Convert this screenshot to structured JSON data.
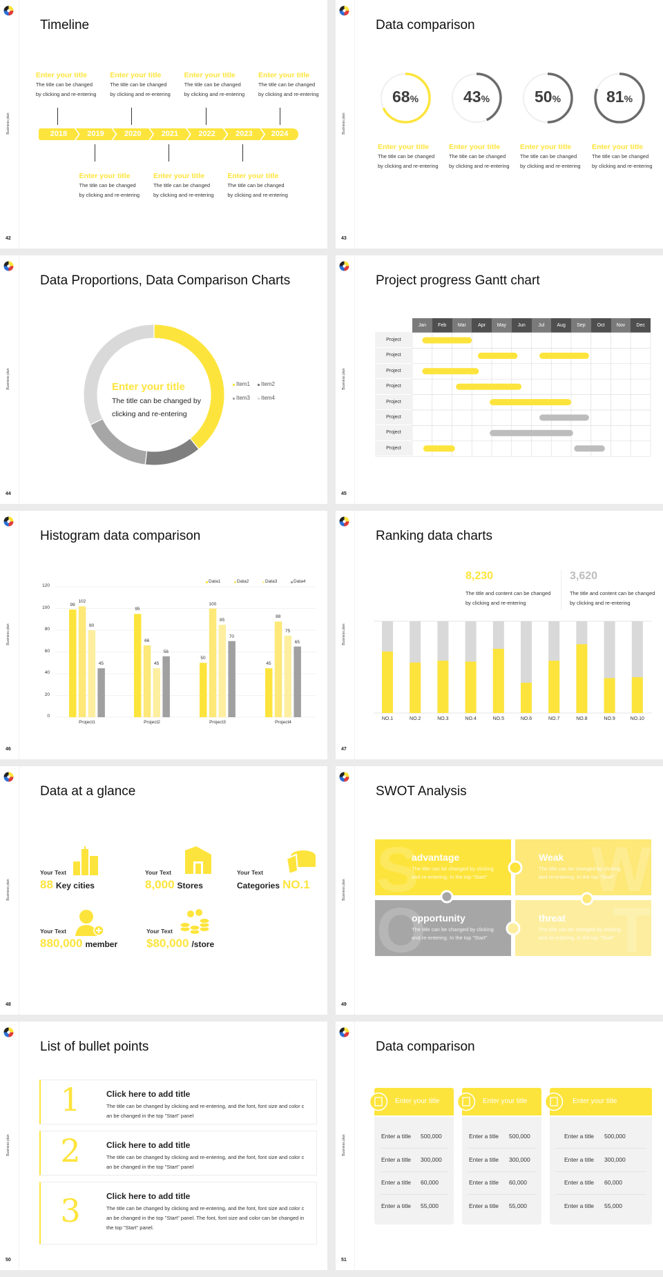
{
  "theme": {
    "yellow": "#fde43c",
    "yellow_mid": "#fde878",
    "yellow_light": "#fdef9f",
    "gray": "#a6a6a6",
    "dark_gray": "#6b6b6b"
  },
  "sidebar_label": "Business plan",
  "slides": [
    {
      "page": "42",
      "title": "Timeline",
      "timeline": {
        "years": [
          "2018",
          "2019",
          "2020",
          "2021",
          "2022",
          "2023",
          "2024"
        ],
        "items": [
          {
            "title": "Enter your title",
            "line1": "The title can be changed",
            "line2": "by clicking and re-entering"
          },
          {
            "title": "Enter your title",
            "line1": "The title can be changed",
            "line2": "by clicking and re-entering"
          },
          {
            "title": "Enter your title",
            "line1": "The title can be changed",
            "line2": "by clicking and re-entering"
          },
          {
            "title": "Enter your title",
            "line1": "The title can be changed",
            "line2": "by clicking and re-entering"
          },
          {
            "title": "Enter your title",
            "line1": "The title can be changed",
            "line2": "by clicking and re-entering"
          },
          {
            "title": "Enter your title",
            "line1": "The title can be changed",
            "line2": "by clicking and re-entering"
          },
          {
            "title": "Enter your title",
            "line1": "The title can be changed",
            "line2": "by clicking and re-entering"
          }
        ]
      }
    },
    {
      "page": "43",
      "title": "Data comparison",
      "gauges": [
        {
          "value": 68,
          "label": "68",
          "unit": "%",
          "color": "#fde43c",
          "title": "Enter your title",
          "line1": "The title can be changed",
          "line2": "by clicking and re-entering"
        },
        {
          "value": 43,
          "label": "43",
          "unit": "%",
          "color": "#6b6b6b",
          "title": "Enter your title",
          "line1": "The title can be changed",
          "line2": "by clicking and re-entering"
        },
        {
          "value": 50,
          "label": "50",
          "unit": "%",
          "color": "#6b6b6b",
          "title": "Enter your title",
          "line1": "The title can be changed",
          "line2": "by clicking and re-entering"
        },
        {
          "value": 81,
          "label": "81",
          "unit": "%",
          "color": "#6b6b6b",
          "title": "Enter your title",
          "line1": "The title can be changed",
          "line2": "by clicking and re-entering"
        }
      ]
    },
    {
      "page": "44",
      "title": "Data Proportions, Data Comparison Charts",
      "center": {
        "title": "Enter your title",
        "line1": "The title can be changed by",
        "line2": "clicking and re-entering"
      }
    },
    {
      "page": "45",
      "title": "Project progress Gantt chart"
    },
    {
      "page": "46",
      "title": "Histogram data comparison"
    },
    {
      "page": "47",
      "title": "Ranking data charts",
      "stats": [
        {
          "value": "8,230",
          "color": "#fde43c",
          "line1": "The title and content can be changed",
          "line2": "by clicking and re-entering"
        },
        {
          "value": "3,620",
          "color": "#bdbdbd",
          "line1": "The title and content can be changed",
          "line2": "by clicking and re-entering"
        }
      ]
    },
    {
      "page": "48",
      "title": "Data at a glance",
      "items": [
        {
          "icon": "buildings-icon",
          "label": "Your Text",
          "number": "88",
          "suffix": "Key cities"
        },
        {
          "icon": "store-icon",
          "label": "Your Text",
          "number": "8,000",
          "suffix": "Stores"
        },
        {
          "icon": "cheese-icon",
          "label": "Your Text",
          "prefix": "Categories",
          "number": "NO.1"
        },
        {
          "icon": "member-add-icon",
          "label": "Your Text",
          "number": "880,000",
          "suffix": "member"
        },
        {
          "icon": "coins-icon",
          "label": "Your Text",
          "number": "$80,000",
          "suffix": "/store"
        }
      ]
    },
    {
      "page": "49",
      "title": "SWOT Analysis",
      "quadrants": [
        {
          "letter": "S",
          "title": "advantage",
          "text": "The title can be changed by clicking and re-entering. In the top \"Start\"",
          "color": "#fde43c"
        },
        {
          "letter": "W",
          "title": "Weak",
          "text": "The title can be changed by clicking and re-entering. In the top \"Start\"",
          "color": "#fde878"
        },
        {
          "letter": "O",
          "title": "opportunity",
          "text": "The title can be changed by clicking and re-entering. In the top \"Start\"",
          "color": "#a6a6a6"
        },
        {
          "letter": "T",
          "title": "threat",
          "text": "The title can be changed by clicking and re-entering. In the top \"Start\"",
          "color": "#fdee9f"
        }
      ]
    },
    {
      "page": "50",
      "title": "List of bullet points",
      "items": [
        {
          "number": "1",
          "title": "Click here to add title",
          "text": "The title can be changed by clicking and re-entering, and the font, font size and color can be changed in the top \"Start\" panel"
        },
        {
          "number": "2",
          "title": "Click here to add title",
          "text": "The title can be changed by clicking and re-entering, and the font, font size and color can be changed in the top \"Start\" panel"
        },
        {
          "number": "3",
          "title": "Click here to add title",
          "text": "The title can be changed by clicking and re-entering, and the font, font size and color can be changed in the top \"Start\" panel. The font, font size and color can be changed in the top \"Start\" panel."
        }
      ]
    },
    {
      "page": "51",
      "title": "Data comparison",
      "cards": [
        {
          "icon": "id-card-icon",
          "title": "Enter your title",
          "rows": [
            {
              "label": "Enter a title",
              "value": "500,000"
            },
            {
              "label": "Enter a title",
              "value": "300,000"
            },
            {
              "label": "Enter a title",
              "value": "60,000"
            },
            {
              "label": "Enter a title",
              "value": "55,000"
            }
          ]
        },
        {
          "icon": "user-network-icon",
          "title": "Enter your title",
          "rows": [
            {
              "label": "Enter a title",
              "value": "500,000"
            },
            {
              "label": "Enter a title",
              "value": "300,000"
            },
            {
              "label": "Enter a title",
              "value": "60,000"
            },
            {
              "label": "Enter a title",
              "value": "55,000"
            }
          ]
        },
        {
          "icon": "team-icon",
          "title": "Enter your title",
          "rows": [
            {
              "label": "Enter a title",
              "value": "500,000"
            },
            {
              "label": "Enter a title",
              "value": "300,000"
            },
            {
              "label": "Enter a title",
              "value": "60,000"
            },
            {
              "label": "Enter a title",
              "value": "55,000"
            }
          ]
        }
      ]
    }
  ],
  "chart_data": [
    {
      "type": "pie",
      "variant": "donut",
      "categories": [
        "Item1",
        "Item2",
        "Item3",
        "Item4"
      ],
      "values": [
        39,
        13,
        16,
        32
      ],
      "colors": [
        "#fde43c",
        "#7f7f7f",
        "#a6a6a6",
        "#d9d9d9"
      ],
      "legend": "right"
    },
    {
      "type": "gantt",
      "months": [
        "Jan",
        "Feb",
        "Mar",
        "Apr",
        "May",
        "Jun",
        "Jul",
        "Aug",
        "Sep",
        "Oct",
        "Nov",
        "Dec"
      ],
      "rows": [
        {
          "label": "Project",
          "bars": [
            {
              "start": 0.5,
              "end": 3.0,
              "color": "#fde43c"
            }
          ]
        },
        {
          "label": "Project",
          "bars": [
            {
              "start": 3.3,
              "end": 5.3,
              "color": "#fde43c"
            },
            {
              "start": 6.4,
              "end": 8.9,
              "color": "#fde43c"
            }
          ]
        },
        {
          "label": "Project",
          "bars": [
            {
              "start": 0.5,
              "end": 3.35,
              "color": "#fde43c"
            }
          ]
        },
        {
          "label": "Project",
          "bars": [
            {
              "start": 2.2,
              "end": 5.5,
              "color": "#fde43c"
            }
          ]
        },
        {
          "label": "Project",
          "bars": [
            {
              "start": 3.9,
              "end": 8.0,
              "color": "#fde43c"
            }
          ]
        },
        {
          "label": "Project",
          "bars": [
            {
              "start": 6.4,
              "end": 8.9,
              "color": "#bdbdbd"
            }
          ]
        },
        {
          "label": "Project",
          "bars": [
            {
              "start": 3.9,
              "end": 8.1,
              "color": "#bdbdbd"
            }
          ]
        },
        {
          "label": "Project",
          "bars": [
            {
              "start": 0.55,
              "end": 2.15,
              "color": "#fde43c"
            },
            {
              "start": 8.15,
              "end": 9.7,
              "color": "#bdbdbd"
            }
          ]
        }
      ]
    },
    {
      "type": "bar",
      "categories": [
        "Project1",
        "Project2",
        "Project3",
        "Project4"
      ],
      "series": [
        {
          "name": "Data1",
          "values": [
            99,
            95,
            50,
            45
          ],
          "color": "#fde43c"
        },
        {
          "name": "Data2",
          "values": [
            102,
            66,
            100,
            88
          ],
          "color": "#fde878"
        },
        {
          "name": "Data3",
          "values": [
            80,
            45,
            85,
            75
          ],
          "color": "#fdef9f"
        },
        {
          "name": "Data4",
          "values": [
            45,
            56,
            70,
            65
          ],
          "color": "#a0a0a0"
        }
      ],
      "yticks": [
        0,
        20,
        40,
        60,
        80,
        100,
        120
      ],
      "ylim": [
        0,
        120
      ],
      "grid": true,
      "legend": "top-right",
      "data_labels": true
    },
    {
      "type": "bar",
      "stacked": true,
      "categories": [
        "NO.1",
        "NO.2",
        "NO.3",
        "NO.4",
        "NO.5",
        "NO.6",
        "NO.7",
        "NO.8",
        "NO.9",
        "NO.10"
      ],
      "values": [
        0.67,
        0.55,
        0.57,
        0.56,
        0.7,
        0.33,
        0.57,
        0.75,
        0.38,
        0.39
      ],
      "ylim": [
        0,
        1
      ],
      "colors": [
        "#fde43c",
        "#d9d9d9"
      ]
    }
  ]
}
